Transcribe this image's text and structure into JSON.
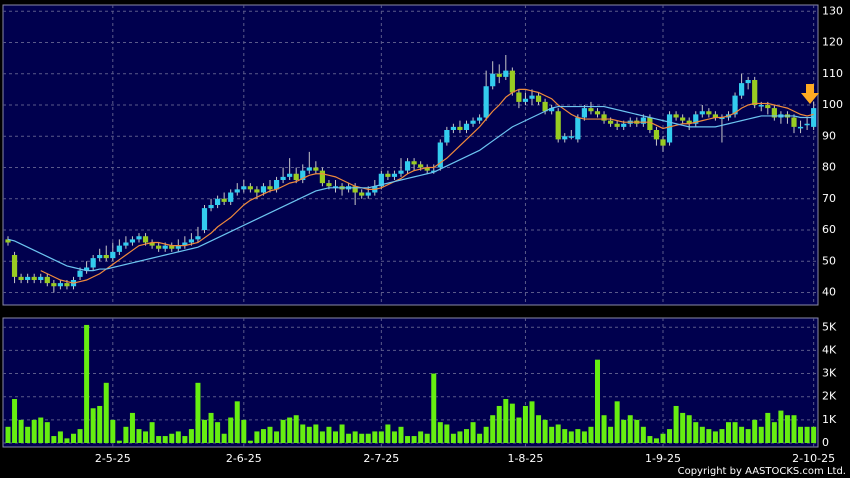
{
  "chart_data": [
    {
      "type": "candlestick",
      "up_color": "#33ccee",
      "down_color": "#99cc22",
      "open": [
        57,
        52,
        45,
        44,
        45,
        44,
        45,
        43,
        42,
        43,
        42,
        45,
        47,
        48,
        51,
        52,
        51,
        53,
        55,
        56,
        57,
        58,
        56,
        55,
        54,
        55,
        54,
        55,
        56,
        57,
        60,
        67,
        68,
        70,
        69,
        72,
        73,
        74,
        73,
        72,
        74,
        73,
        76,
        77,
        78,
        76,
        79,
        80,
        79,
        75,
        74,
        74,
        73,
        74,
        72,
        71,
        72,
        74,
        78,
        77,
        78,
        79,
        82,
        81,
        80,
        79,
        80,
        88,
        92,
        93,
        92,
        94,
        95,
        96,
        106,
        110,
        109,
        111,
        104,
        101,
        102,
        103,
        101,
        98,
        98,
        89,
        90,
        89,
        96,
        99,
        98,
        97,
        95,
        94,
        93,
        94,
        95,
        94,
        96,
        92,
        89,
        88,
        97,
        96,
        95,
        94,
        97,
        98,
        97,
        96,
        96,
        97,
        103,
        107,
        108,
        100,
        100,
        99,
        96,
        97,
        96,
        93,
        94,
        93
      ],
      "high": [
        58,
        53,
        46,
        46,
        46,
        46,
        46,
        44,
        44,
        44,
        45,
        48,
        50,
        52,
        54,
        55,
        56,
        57,
        58,
        58,
        59,
        59,
        57,
        56,
        56,
        56,
        57,
        58,
        59,
        61,
        68,
        70,
        71,
        72,
        73,
        75,
        76,
        75,
        74,
        75,
        76,
        77,
        80,
        83,
        80,
        81,
        85,
        82,
        80,
        76,
        76,
        75,
        75,
        75,
        73,
        74,
        76,
        79,
        79,
        79,
        83,
        83,
        83,
        82,
        81,
        81,
        89,
        93,
        94,
        95,
        95,
        96,
        97,
        111,
        114,
        113,
        116,
        112,
        105,
        104,
        105,
        104,
        102,
        100,
        99,
        91,
        92,
        97,
        100,
        101,
        99,
        98,
        96,
        95,
        95,
        96,
        96,
        97,
        97,
        93,
        90,
        98,
        98,
        97,
        96,
        98,
        100,
        99,
        98,
        97,
        98,
        104,
        110,
        109,
        109,
        101,
        101,
        100,
        98,
        98,
        97,
        95,
        96,
        101
      ],
      "low": [
        55,
        43,
        43,
        43,
        43,
        43,
        42,
        40,
        41,
        41,
        41,
        44,
        46,
        47,
        50,
        50,
        50,
        52,
        54,
        55,
        56,
        55,
        54,
        53,
        53,
        53,
        53,
        54,
        55,
        56,
        59,
        66,
        67,
        68,
        68,
        71,
        72,
        72,
        70,
        71,
        72,
        72,
        75,
        76,
        75,
        75,
        78,
        78,
        74,
        73,
        72,
        71,
        72,
        68,
        70,
        70,
        71,
        73,
        76,
        76,
        77,
        78,
        79,
        79,
        78,
        78,
        79,
        87,
        91,
        91,
        91,
        93,
        94,
        95,
        105,
        107,
        108,
        103,
        99,
        100,
        100,
        100,
        97,
        97,
        88,
        88,
        89,
        88,
        95,
        97,
        96,
        94,
        93,
        92,
        92,
        93,
        93,
        93,
        91,
        87,
        85,
        87,
        95,
        94,
        92,
        93,
        96,
        96,
        95,
        88,
        95,
        96,
        102,
        105,
        99,
        98,
        97,
        95,
        94,
        94,
        91,
        91,
        92,
        92
      ],
      "close": [
        56,
        45,
        44,
        45,
        44,
        45,
        43,
        42,
        43,
        42,
        44,
        47,
        48,
        51,
        52,
        51,
        53,
        55,
        56,
        57,
        58,
        56,
        55,
        54,
        55,
        54,
        55,
        56,
        57,
        58,
        67,
        68,
        70,
        69,
        72,
        73,
        74,
        73,
        72,
        74,
        73,
        76,
        77,
        78,
        76,
        79,
        80,
        79,
        75,
        74,
        74,
        73,
        74,
        72,
        71,
        72,
        74,
        78,
        77,
        78,
        79,
        82,
        81,
        80,
        79,
        79,
        88,
        92,
        93,
        92,
        94,
        95,
        96,
        106,
        110,
        109,
        111,
        104,
        101,
        102,
        103,
        101,
        98,
        99,
        89,
        90,
        90,
        96,
        99,
        98,
        97,
        95,
        94,
        93,
        94,
        95,
        94,
        96,
        92,
        89,
        87,
        97,
        96,
        95,
        94,
        97,
        98,
        97,
        96,
        96,
        97,
        103,
        107,
        108,
        100,
        100,
        99,
        96,
        97,
        96,
        93,
        93,
        94,
        99
      ],
      "series": [
        {
          "color": "#f08a3c",
          "values": [
            null,
            null,
            null,
            null,
            null,
            47,
            46,
            45,
            44,
            43.5,
            43,
            43.5,
            44,
            45,
            46,
            47.5,
            49,
            50.5,
            52,
            53.5,
            55,
            55.5,
            56,
            56,
            55.5,
            55,
            55,
            55,
            55.5,
            56,
            57.5,
            59,
            61,
            62.5,
            64,
            66,
            68,
            69.5,
            70.5,
            71.5,
            72.5,
            73,
            74,
            75,
            75.5,
            76.5,
            77.5,
            78,
            78,
            77.5,
            77,
            76,
            75,
            74,
            73.5,
            73,
            73,
            73.5,
            74.5,
            75.5,
            76.5,
            78,
            79,
            79.5,
            80,
            80,
            81.5,
            83,
            85,
            87,
            89,
            91,
            93,
            95.5,
            98,
            100,
            102.5,
            104,
            105,
            105,
            104.5,
            104,
            103,
            102,
            100,
            98.5,
            97,
            96,
            95.5,
            95.5,
            95.5,
            95.5,
            95.5,
            95,
            94.5,
            94.5,
            94.5,
            94.5,
            94.5,
            93.5,
            92.5,
            93,
            93.5,
            94,
            94,
            94.5,
            95,
            95.5,
            96,
            96,
            96.5,
            97.5,
            99,
            100,
            100.5,
            100.5,
            100.5,
            100,
            99.5,
            99,
            98,
            97,
            96.5,
            97
          ]
        },
        {
          "color": "#6cc4f0",
          "values": [
            57,
            56.5,
            55.5,
            54.5,
            53.5,
            52.5,
            51.5,
            50.5,
            49.5,
            48.5,
            48,
            47.5,
            47,
            47,
            47.5,
            47.5,
            48,
            48.5,
            49,
            49.5,
            50,
            50.5,
            51,
            51.5,
            52,
            52.5,
            53,
            53.5,
            54,
            54.5,
            55.5,
            56.5,
            57.5,
            58.5,
            59.5,
            60.5,
            61.5,
            62.5,
            63.5,
            64.5,
            65.5,
            66.5,
            67.5,
            68.5,
            69.5,
            70.5,
            71.5,
            72.5,
            73,
            73.5,
            73.5,
            73.5,
            73.5,
            73.5,
            73.5,
            73.5,
            74,
            74.5,
            75,
            75.5,
            76,
            76.5,
            77,
            77.5,
            78,
            78.5,
            79.5,
            80.5,
            81.5,
            82.5,
            83.5,
            84.5,
            85.5,
            87,
            88.5,
            90,
            91.5,
            93,
            94,
            95,
            96,
            97,
            98,
            99,
            99.5,
            99.5,
            99.5,
            99.5,
            99.5,
            99.5,
            99.5,
            99.5,
            99,
            98.5,
            98,
            97.5,
            97,
            96.5,
            96,
            95.5,
            95,
            94.5,
            94,
            93.5,
            93,
            93,
            93,
            93,
            93,
            93.5,
            94,
            94.5,
            95,
            95.5,
            96,
            96.5,
            96.5,
            96.5,
            96.5,
            96.5,
            96.5,
            96,
            96,
            96
          ]
        }
      ],
      "ylim": [
        36,
        132
      ],
      "yticks": [
        40,
        50,
        60,
        70,
        80,
        90,
        100,
        110,
        120,
        130
      ],
      "grid": true
    },
    {
      "type": "bar",
      "color": "#66ee11",
      "categories": [
        null,
        null,
        null,
        null,
        null,
        null,
        null,
        null,
        null,
        null,
        null,
        null,
        null,
        null,
        null,
        null,
        "2-5-25",
        null,
        null,
        null,
        null,
        null,
        null,
        null,
        null,
        null,
        null,
        null,
        null,
        null,
        null,
        null,
        null,
        null,
        null,
        null,
        "2-6-25",
        null,
        null,
        null,
        null,
        null,
        null,
        null,
        null,
        null,
        null,
        null,
        null,
        null,
        null,
        null,
        null,
        null,
        null,
        null,
        null,
        "2-7-25",
        null,
        null,
        null,
        null,
        null,
        null,
        null,
        null,
        null,
        null,
        null,
        null,
        null,
        null,
        null,
        null,
        null,
        null,
        null,
        null,
        null,
        "1-8-25",
        null,
        null,
        null,
        null,
        null,
        null,
        null,
        null,
        null,
        null,
        null,
        null,
        null,
        null,
        null,
        null,
        null,
        null,
        null,
        null,
        "1-9-25",
        null,
        null,
        null,
        null,
        null,
        null,
        null,
        null,
        null,
        null,
        null,
        null,
        null,
        null,
        null,
        null,
        null,
        null,
        null,
        null,
        null,
        null,
        "2-10-25"
      ],
      "values": [
        700,
        1900,
        1000,
        700,
        1000,
        1100,
        900,
        300,
        500,
        200,
        400,
        600,
        5100,
        1500,
        1600,
        2600,
        1000,
        100,
        700,
        1300,
        600,
        500,
        900,
        300,
        300,
        400,
        500,
        300,
        600,
        2600,
        1000,
        1300,
        900,
        400,
        1100,
        1800,
        1000,
        100,
        500,
        600,
        700,
        500,
        1000,
        1100,
        1200,
        800,
        700,
        800,
        500,
        700,
        500,
        800,
        400,
        500,
        400,
        400,
        500,
        500,
        800,
        500,
        700,
        300,
        300,
        500,
        400,
        3000,
        900,
        800,
        400,
        500,
        600,
        900,
        400,
        700,
        1200,
        1600,
        1900,
        1700,
        1100,
        1600,
        1800,
        1200,
        1000,
        700,
        800,
        600,
        500,
        600,
        500,
        700,
        3600,
        1200,
        700,
        1800,
        1000,
        1200,
        1000,
        700,
        300,
        200,
        400,
        600,
        1600,
        1300,
        1200,
        900,
        700,
        600,
        500,
        600,
        900,
        900,
        700,
        600,
        1000,
        700,
        1300,
        900,
        1400,
        1200,
        1200,
        700,
        700,
        700
      ],
      "ylim": [
        0,
        5400
      ],
      "yticks": [
        {
          "value": 0,
          "label": "0"
        },
        {
          "value": 1000,
          "label": "1K"
        },
        {
          "value": 2000,
          "label": "2K"
        },
        {
          "value": 3000,
          "label": "3K"
        },
        {
          "value": 4000,
          "label": "4K"
        },
        {
          "value": 5000,
          "label": "5K"
        }
      ],
      "grid": true
    }
  ],
  "copyright": "Copyright by AASTOCKS.com Ltd."
}
